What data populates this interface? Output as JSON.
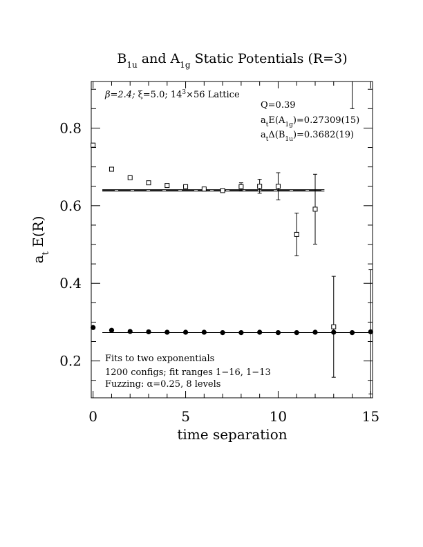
{
  "chart_data": {
    "type": "scatter",
    "title": {
      "b": "B",
      "b_sub": "1u",
      "mid": " and A",
      "a_sub": "1g",
      "rest": " Static Potentials (R=3)"
    },
    "xlabel": "time separation",
    "ylabel": {
      "pre": "a",
      "sub": "t",
      "rest": " E(R)"
    },
    "xlim": [
      -0.1,
      15.1
    ],
    "ylim": [
      0.105,
      0.92
    ],
    "x_ticks": [
      0,
      5,
      10,
      15
    ],
    "x_tick_labels": [
      "0",
      "5",
      "10",
      "15"
    ],
    "y_ticks": [
      0.2,
      0.4,
      0.6,
      0.8
    ],
    "y_tick_labels": [
      "0.2",
      "0.4",
      "0.6",
      "0.8"
    ],
    "annotations": {
      "lattice": {
        "beta": "β=2.4; ",
        "xi": "ξ=5.0; 14",
        "sup": "3",
        "rest": "×56 Lattice"
      },
      "q": "Q=0.39",
      "energy": {
        "a": "a",
        "a_sub": "t",
        "mid": "E(A",
        "sub": "1g",
        "val": ")=0.27309(15)"
      },
      "gap": {
        "a": "a",
        "a_sub": "t",
        "mid": "Δ(B",
        "sub": "1u",
        "val": ")=0.3682(19)"
      },
      "fits": "Fits to two exponentials",
      "configs": "1200 configs; fit ranges 1−16, 1−13",
      "fuzzing": "Fuzzing: α=0.25, 8 levels"
    },
    "series": [
      {
        "marker": "filled-circle",
        "x": [
          0,
          1,
          2,
          3,
          4,
          5,
          6,
          7,
          8,
          9,
          10,
          11,
          12,
          13,
          14,
          15
        ],
        "y": [
          0.286,
          0.279,
          0.276,
          0.275,
          0.274,
          0.274,
          0.274,
          0.273,
          0.273,
          0.274,
          0.273,
          0.273,
          0.274,
          0.274,
          0.273,
          0.275
        ],
        "err": [
          0,
          0,
          0,
          0,
          0,
          0,
          0,
          0,
          0,
          0,
          0,
          0,
          0,
          0,
          0,
          0.16
        ]
      },
      {
        "marker": "open-square",
        "x": [
          0,
          1,
          2,
          3,
          4,
          5,
          6,
          7,
          8,
          9,
          10,
          11,
          12,
          13
        ],
        "y": [
          0.756,
          0.694,
          0.672,
          0.659,
          0.652,
          0.649,
          0.643,
          0.639,
          0.649,
          0.65,
          0.65,
          0.526,
          0.591,
          0.288
        ],
        "err": [
          0,
          0,
          0,
          0,
          0,
          0,
          0.004,
          0.004,
          0.01,
          0.018,
          0.035,
          0.055,
          0.09,
          0.13
        ]
      },
      {
        "marker": "open-square-offscale",
        "x": [
          14
        ],
        "y": [
          0.89
        ],
        "err": [
          0.04
        ]
      }
    ],
    "fit_lines": [
      {
        "style": "solid",
        "x": [
          0.5,
          15
        ],
        "y": [
          0.27309,
          0.27309
        ]
      },
      {
        "style": "solid",
        "x": [
          0.5,
          12.5
        ],
        "y": [
          0.6413,
          0.6413
        ]
      },
      {
        "style": "solid",
        "x": [
          0.5,
          12.5
        ],
        "y": [
          0.6375,
          0.6375
        ]
      },
      {
        "style": "dashed",
        "x": [
          0.5,
          12.5
        ],
        "y": [
          0.6394,
          0.6394
        ]
      }
    ],
    "grid": false,
    "legend": "none"
  }
}
